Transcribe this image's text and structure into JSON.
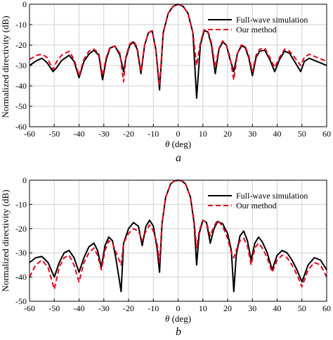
{
  "figure": {
    "x_ticks": [
      "-60",
      "-50",
      "-40",
      "-30",
      "-20",
      "-10",
      "0",
      "10",
      "20",
      "30",
      "40",
      "50",
      "60"
    ],
    "xlabel_symbol": "θ",
    "xlabel_unit": " (deg)",
    "ylabel": "Normalized directivity (dB)"
  },
  "chart_data": [
    {
      "type": "line",
      "caption": "a",
      "xlabel": "θ (deg)",
      "ylabel": "Normalized directivity (dB)",
      "xlim": [
        -60,
        60
      ],
      "ylim": [
        -60,
        0
      ],
      "y_ticks": [
        "0",
        "-10",
        "-20",
        "-30",
        "-40",
        "-50",
        "-60"
      ],
      "grid": true,
      "legend_position": "top-right",
      "series": [
        {
          "name": "Full-wave simulation",
          "color": "#000000",
          "style": "solid",
          "x": [
            -60,
            -57,
            -55,
            -53,
            -50.5,
            -49,
            -47,
            -44,
            -42,
            -40,
            -38,
            -36,
            -34,
            -32,
            -30.5,
            -29,
            -27.5,
            -25.5,
            -23.5,
            -22,
            -21,
            -19.5,
            -18,
            -16.5,
            -15,
            -13.5,
            -12,
            -10.5,
            -9,
            -7.5,
            -6,
            -4,
            -2,
            0,
            2,
            4,
            6,
            7.5,
            9,
            10.5,
            12,
            13.5,
            15,
            16.5,
            18,
            19.5,
            21,
            22.5,
            24,
            25.5,
            27,
            28.5,
            30,
            31.5,
            33,
            35,
            37,
            39,
            41,
            43,
            45,
            47,
            49.5,
            51,
            53,
            55,
            57,
            60
          ],
          "y": [
            -30,
            -27.5,
            -26.5,
            -28.5,
            -33,
            -31,
            -27.5,
            -25,
            -28,
            -36,
            -28,
            -24.5,
            -22.5,
            -25,
            -37,
            -27,
            -21.5,
            -20.5,
            -25,
            -33,
            -26,
            -20,
            -18.5,
            -22,
            -34,
            -20,
            -14,
            -13,
            -22,
            -42,
            -14,
            -4.5,
            -1,
            0,
            -1,
            -4.5,
            -14,
            -46,
            -20,
            -13,
            -13.5,
            -20,
            -34,
            -22,
            -18.5,
            -20,
            -27,
            -33,
            -24,
            -20.5,
            -21,
            -26,
            -35,
            -26,
            -23,
            -22.5,
            -27,
            -33,
            -27,
            -23,
            -24,
            -28,
            -33,
            -28,
            -26.5,
            -27.5,
            -28.5,
            -30
          ]
        },
        {
          "name": "Our method",
          "color": "#e8001c",
          "style": "dashed",
          "x": [
            -60,
            -57,
            -55,
            -53,
            -50.5,
            -49,
            -47,
            -44,
            -42,
            -40,
            -38,
            -36,
            -34,
            -32,
            -30.5,
            -29,
            -27.5,
            -25.5,
            -23.5,
            -22,
            -21,
            -19.5,
            -18,
            -16.5,
            -15,
            -13.5,
            -12,
            -10.5,
            -9,
            -7.5,
            -6,
            -4,
            -2,
            0,
            2,
            4,
            6,
            7.5,
            9,
            10.5,
            12,
            13.5,
            15,
            16.5,
            18,
            19.5,
            21,
            22.5,
            24,
            25.5,
            27,
            28.5,
            30,
            31.5,
            33,
            35,
            37,
            39,
            41,
            43,
            45,
            47,
            49.5,
            51,
            53,
            55,
            57,
            60
          ],
          "y": [
            -27,
            -25,
            -24.5,
            -26,
            -32,
            -28,
            -25,
            -23,
            -27,
            -35,
            -27,
            -23,
            -22,
            -24,
            -35,
            -26,
            -21,
            -20.5,
            -24,
            -38,
            -25,
            -19.5,
            -18,
            -21,
            -33,
            -20,
            -14,
            -13,
            -22,
            -40,
            -14,
            -4.5,
            -1,
            0,
            -1,
            -4.5,
            -14,
            -30,
            -19,
            -12.5,
            -13,
            -19,
            -31,
            -21.5,
            -18,
            -20,
            -26,
            -37,
            -24,
            -20,
            -20.5,
            -25,
            -33,
            -25,
            -22,
            -21.5,
            -26,
            -31,
            -26,
            -22,
            -23,
            -26,
            -30,
            -26,
            -24.5,
            -25.5,
            -26.5,
            -28
          ]
        }
      ]
    },
    {
      "type": "line",
      "caption": "b",
      "xlabel": "θ (deg)",
      "ylabel": "Normalized directivity (dB)",
      "xlim": [
        -60,
        60
      ],
      "ylim": [
        -50,
        0
      ],
      "y_ticks": [
        "0",
        "-10",
        "-20",
        "-30",
        "-40",
        "-50"
      ],
      "grid": true,
      "legend_position": "top-right",
      "series": [
        {
          "name": "Full-wave simulation",
          "color": "#000000",
          "style": "solid",
          "x": [
            -60,
            -57.5,
            -55,
            -52.5,
            -50,
            -48,
            -46,
            -44,
            -42,
            -40,
            -38,
            -36,
            -34,
            -32.5,
            -31,
            -29.5,
            -28,
            -26.5,
            -25,
            -23,
            -22,
            -20,
            -18,
            -16,
            -14.5,
            -13,
            -11.5,
            -10,
            -8.5,
            -7.5,
            -6.5,
            -5,
            -3,
            -1.5,
            0,
            1.5,
            3,
            5,
            6.5,
            7.5,
            8.5,
            10,
            11.5,
            13,
            14.5,
            16,
            18,
            20,
            21.5,
            22.5,
            23.5,
            25,
            26.5,
            28,
            29.5,
            31,
            32.5,
            34,
            36,
            38,
            40,
            42,
            44,
            46,
            48,
            50,
            52.5,
            55,
            57.5,
            60
          ],
          "y": [
            -34,
            -32,
            -31.5,
            -34,
            -40,
            -34,
            -30,
            -29,
            -32,
            -38,
            -32,
            -27.5,
            -26,
            -29,
            -36,
            -27,
            -23.5,
            -25,
            -33,
            -46,
            -26,
            -20,
            -17.5,
            -19,
            -27,
            -19,
            -16.5,
            -19,
            -28,
            -38,
            -18,
            -7,
            -1.5,
            -0.3,
            0,
            -0.3,
            -1.5,
            -7,
            -18,
            -35,
            -22,
            -16.5,
            -17.5,
            -26,
            -20,
            -17,
            -18,
            -22,
            -29,
            -46,
            -31,
            -23,
            -21,
            -25,
            -33,
            -26,
            -23.5,
            -25.5,
            -30,
            -37,
            -31,
            -29,
            -30,
            -33,
            -37,
            -42,
            -35,
            -32,
            -33,
            -37
          ]
        },
        {
          "name": "Our method",
          "color": "#e8001c",
          "style": "dashed",
          "x": [
            -60,
            -57.5,
            -55,
            -52.5,
            -50,
            -48,
            -46,
            -44,
            -42,
            -40,
            -38,
            -36,
            -34,
            -32.5,
            -31,
            -29.5,
            -28,
            -26.5,
            -25,
            -23,
            -22,
            -20,
            -18,
            -16,
            -14.5,
            -13,
            -11.5,
            -10,
            -8.5,
            -7.5,
            -6.5,
            -5,
            -3,
            -1.5,
            0,
            1.5,
            3,
            5,
            6.5,
            7.5,
            8.5,
            10,
            11.5,
            13,
            14.5,
            16,
            18,
            20,
            21.5,
            22.5,
            23.5,
            25,
            26.5,
            28,
            29.5,
            31,
            32.5,
            34,
            36,
            38,
            40,
            42,
            44,
            46,
            48,
            50,
            52.5,
            55,
            57.5,
            60
          ],
          "y": [
            -40,
            -35,
            -33,
            -36,
            -45,
            -36,
            -32,
            -31,
            -35,
            -42,
            -34,
            -30,
            -28,
            -31,
            -37,
            -29,
            -25,
            -26,
            -30,
            -35,
            -26,
            -22,
            -20,
            -21,
            -25,
            -21,
            -18.5,
            -21,
            -26,
            -34,
            -18,
            -7,
            -1.5,
            -0.3,
            0,
            -0.3,
            -1.5,
            -7,
            -17,
            -28,
            -21,
            -16.5,
            -17.5,
            -23,
            -19,
            -16.5,
            -19,
            -24,
            -30,
            -32,
            -29,
            -25,
            -24,
            -27,
            -35,
            -28,
            -26,
            -28,
            -32,
            -38,
            -33,
            -31,
            -32,
            -35,
            -39,
            -44,
            -37,
            -34,
            -35,
            -40
          ]
        }
      ]
    }
  ]
}
